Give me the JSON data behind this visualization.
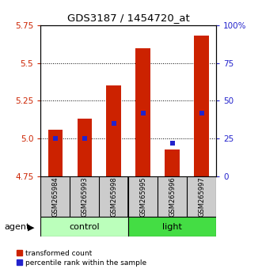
{
  "title": "GDS3187 / 1454720_at",
  "samples": [
    "GSM265984",
    "GSM265993",
    "GSM265998",
    "GSM265995",
    "GSM265996",
    "GSM265997"
  ],
  "groups": [
    "control",
    "control",
    "control",
    "light",
    "light",
    "light"
  ],
  "group_labels": [
    "control",
    "light"
  ],
  "bar_bottom": 4.75,
  "bar_tops": [
    5.06,
    5.13,
    5.35,
    5.6,
    4.93,
    5.68
  ],
  "percentile_values": [
    5.0,
    5.0,
    5.1,
    5.17,
    4.97,
    5.17
  ],
  "ylim_left": [
    4.75,
    5.75
  ],
  "ylim_right": [
    0,
    100
  ],
  "yticks_left": [
    4.75,
    5.0,
    5.25,
    5.5,
    5.75
  ],
  "yticks_right": [
    0,
    25,
    50,
    75,
    100
  ],
  "ytick_labels_right": [
    "0",
    "25",
    "50",
    "75",
    "100%"
  ],
  "bar_color": "#cc2200",
  "blue_color": "#2222cc",
  "control_color": "#bbffbb",
  "light_color": "#44dd44",
  "left_tick_color": "#cc2200",
  "right_tick_color": "#2222cc",
  "bar_width": 0.5,
  "agent_label": "agent",
  "legend_red_label": "transformed count",
  "legend_blue_label": "percentile rank within the sample"
}
